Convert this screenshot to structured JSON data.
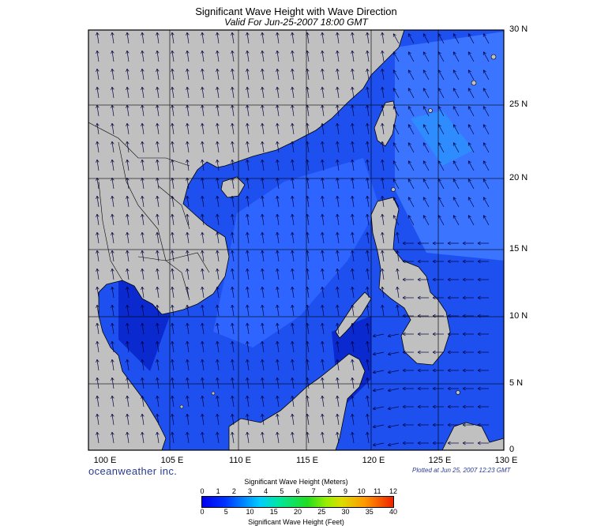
{
  "title": "Significant Wave Height with Wave Direction",
  "subtitle": "Valid For Jun-25-2007 18:00 GMT",
  "lat_labels": [
    "30 N",
    "25 N",
    "20 N",
    "15 N",
    "10 N",
    "5 N",
    "0"
  ],
  "lon_labels": [
    "100 E",
    "105 E",
    "110 E",
    "115 E",
    "120 E",
    "125 E",
    "130 E"
  ],
  "brand": "oceanweather inc.",
  "plotted": "Plotted at Jun 25, 2007 12:23 GMT",
  "legend": {
    "meters_label": "Significant Wave Height (Meters)",
    "feet_label": "Significant Wave Height (Feet)",
    "meter_ticks": [
      "0",
      "1",
      "2",
      "3",
      "4",
      "5",
      "6",
      "7",
      "8",
      "9",
      "10",
      "11",
      "12"
    ],
    "feet_ticks": [
      "0",
      "5",
      "10",
      "15",
      "20",
      "25",
      "30",
      "35",
      "40"
    ]
  },
  "colors": {
    "land": "#c0c0c0",
    "sea_deep": "#0a2ad0",
    "sea_mid": "#1e50f0",
    "sea_light": "#3e7cff",
    "arrow": "#000040"
  }
}
